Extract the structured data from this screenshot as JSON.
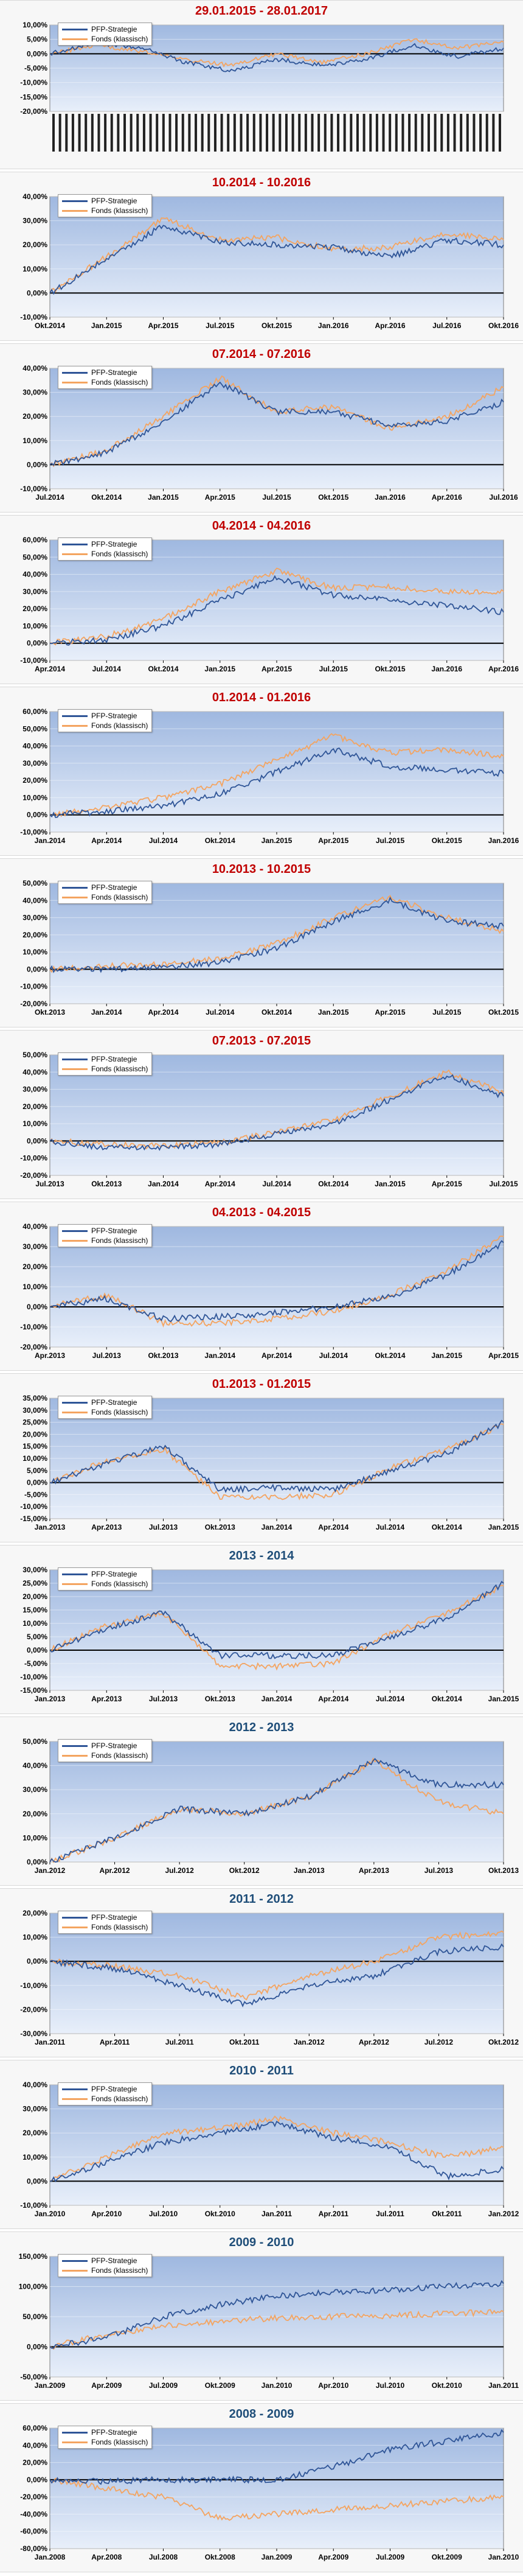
{
  "colors": {
    "strategy": "#2f5597",
    "fund": "#f4a460",
    "title_red": "#c00000",
    "title_blue": "#1f4e79"
  },
  "chart_data": [
    {
      "type": "line",
      "title": "29.01.2015 - 28.01.2017",
      "title_color": "red",
      "y_ticks": [
        "10,00%",
        "5,00%",
        "0,00%",
        "-5,00%",
        "-10,00%",
        "-15,00%",
        "-20,00%"
      ],
      "ylim": [
        -20,
        10
      ],
      "x_labels_unreadable": true,
      "series": [
        {
          "name": "PFP-Strategie",
          "values": [
            0,
            4,
            2,
            -3,
            -6,
            -2,
            -4,
            -2,
            3,
            -1,
            2
          ]
        },
        {
          "name": "Fonds (klassisch)",
          "values": [
            0,
            3,
            1,
            -2,
            -4,
            0,
            -3,
            0,
            5,
            2,
            4
          ]
        }
      ],
      "legend": "top-left"
    },
    {
      "type": "line",
      "title": "10.2014 - 10.2016",
      "title_color": "red",
      "y_ticks": [
        "40,00%",
        "30,00%",
        "20,00%",
        "10,00%",
        "0,00%",
        "-10,00%"
      ],
      "ylim": [
        -10,
        40
      ],
      "x_labels": [
        "Okt.2014",
        "Jan.2015",
        "Apr.2015",
        "Jul.2015",
        "Okt.2015",
        "Jan.2016",
        "Apr.2016",
        "Jul.2016",
        "Okt.2016"
      ],
      "series": [
        {
          "name": "PFP-Strategie",
          "values": [
            0,
            14,
            28,
            21,
            20,
            19,
            15,
            22,
            20
          ]
        },
        {
          "name": "Fonds (klassisch)",
          "values": [
            0,
            15,
            31,
            22,
            23,
            18,
            19,
            25,
            22
          ]
        }
      ],
      "legend": "top-left"
    },
    {
      "type": "line",
      "title": "07.2014 - 07.2016",
      "title_color": "red",
      "y_ticks": [
        "40,00%",
        "30,00%",
        "20,00%",
        "10,00%",
        "0,00%",
        "-10,00%"
      ],
      "ylim": [
        -10,
        40
      ],
      "x_labels": [
        "Jul.2014",
        "Okt.2014",
        "Jan.2015",
        "Apr.2015",
        "Jul.2015",
        "Okt.2015",
        "Jan.2016",
        "Apr.2016",
        "Jul.2016"
      ],
      "series": [
        {
          "name": "PFP-Strategie",
          "values": [
            0,
            5,
            18,
            34,
            22,
            22,
            16,
            18,
            26
          ]
        },
        {
          "name": "Fonds (klassisch)",
          "values": [
            0,
            6,
            20,
            36,
            22,
            24,
            15,
            20,
            32
          ]
        }
      ],
      "legend": "top-left"
    },
    {
      "type": "line",
      "title": "04.2014 - 04.2016",
      "title_color": "red",
      "y_ticks": [
        "60,00%",
        "50,00%",
        "40,00%",
        "30,00%",
        "20,00%",
        "10,00%",
        "0,00%",
        "-10,00%"
      ],
      "ylim": [
        -10,
        60
      ],
      "x_labels": [
        "Apr.2014",
        "Jul.2014",
        "Okt.2014",
        "Jan.2015",
        "Apr.2015",
        "Jul.2015",
        "Okt.2015",
        "Jan.2016",
        "Apr.2016"
      ],
      "series": [
        {
          "name": "PFP-Strategie",
          "values": [
            0,
            2,
            10,
            25,
            38,
            28,
            25,
            22,
            18
          ]
        },
        {
          "name": "Fonds (klassisch)",
          "values": [
            0,
            4,
            14,
            30,
            42,
            32,
            33,
            30,
            30
          ]
        }
      ],
      "legend": "top-left"
    },
    {
      "type": "line",
      "title": "01.2014 - 01.2016",
      "title_color": "red",
      "y_ticks": [
        "60,00%",
        "50,00%",
        "40,00%",
        "30,00%",
        "20,00%",
        "10,00%",
        "0,00%",
        "-10,00%"
      ],
      "ylim": [
        -10,
        60
      ],
      "x_labels": [
        "Jan.2014",
        "Apr.2014",
        "Jul.2014",
        "Okt.2014",
        "Jan.2015",
        "Apr.2015",
        "Jul.2015",
        "Okt.2015",
        "Jan.2016"
      ],
      "series": [
        {
          "name": "PFP-Strategie",
          "values": [
            0,
            2,
            5,
            12,
            25,
            38,
            28,
            26,
            24
          ]
        },
        {
          "name": "Fonds (klassisch)",
          "values": [
            0,
            4,
            10,
            18,
            32,
            46,
            36,
            38,
            34
          ]
        }
      ],
      "legend": "top-left"
    },
    {
      "type": "line",
      "title": "10.2013 - 10.2015",
      "title_color": "red",
      "y_ticks": [
        "50,00%",
        "40,00%",
        "30,00%",
        "20,00%",
        "10,00%",
        "0,00%",
        "-10,00%",
        "-20,00%"
      ],
      "ylim": [
        -20,
        50
      ],
      "x_labels": [
        "Okt.2013",
        "Jan.2014",
        "Apr.2014",
        "Jul.2014",
        "Okt.2014",
        "Jan.2015",
        "Apr.2015",
        "Jul.2015",
        "Okt.2015"
      ],
      "series": [
        {
          "name": "PFP-Strategie",
          "values": [
            0,
            0,
            1,
            4,
            12,
            28,
            40,
            28,
            25
          ]
        },
        {
          "name": "Fonds (klassisch)",
          "values": [
            0,
            2,
            3,
            6,
            15,
            30,
            42,
            30,
            22
          ]
        }
      ],
      "legend": "top-left"
    },
    {
      "type": "line",
      "title": "07.2013 - 07.2015",
      "title_color": "red",
      "y_ticks": [
        "50,00%",
        "40,00%",
        "30,00%",
        "20,00%",
        "10,00%",
        "0,00%",
        "-10,00%",
        "-20,00%"
      ],
      "ylim": [
        -20,
        50
      ],
      "x_labels": [
        "Jul.2013",
        "Okt.2013",
        "Jan.2014",
        "Apr.2014",
        "Jul.2014",
        "Okt.2014",
        "Jan.2015",
        "Apr.2015",
        "Jul.2015"
      ],
      "series": [
        {
          "name": "PFP-Strategie",
          "values": [
            0,
            -4,
            -4,
            -2,
            4,
            10,
            24,
            38,
            26
          ]
        },
        {
          "name": "Fonds (klassisch)",
          "values": [
            0,
            -2,
            -3,
            -1,
            5,
            12,
            26,
            40,
            28
          ]
        }
      ],
      "legend": "top-left"
    },
    {
      "type": "line",
      "title": "04.2013 - 04.2015",
      "title_color": "red",
      "y_ticks": [
        "40,00%",
        "30,00%",
        "20,00%",
        "10,00%",
        "0,00%",
        "-10,00%",
        "-20,00%"
      ],
      "ylim": [
        -20,
        40
      ],
      "x_labels": [
        "Apr.2013",
        "Jul.2013",
        "Okt.2013",
        "Jan.2014",
        "Apr.2014",
        "Jul.2014",
        "Okt.2014",
        "Jan.2015",
        "Apr.2015"
      ],
      "series": [
        {
          "name": "PFP-Strategie",
          "values": [
            0,
            4,
            -6,
            -5,
            -3,
            0,
            5,
            16,
            32
          ]
        },
        {
          "name": "Fonds (klassisch)",
          "values": [
            0,
            6,
            -8,
            -8,
            -6,
            -2,
            6,
            18,
            35
          ]
        }
      ],
      "legend": "top-left"
    },
    {
      "type": "line",
      "title": "01.2013 - 01.2015",
      "title_color": "red",
      "y_ticks": [
        "35,00%",
        "30,00%",
        "25,00%",
        "20,00%",
        "15,00%",
        "10,00%",
        "5,00%",
        "0,00%",
        "-5,00%",
        "-10,00%",
        "-15,00%"
      ],
      "ylim": [
        -15,
        35
      ],
      "x_labels": [
        "Jan.2013",
        "Apr.2013",
        "Jul.2013",
        "Okt.2013",
        "Jan.2014",
        "Apr.2014",
        "Jul.2014",
        "Okt.2014",
        "Jan.2015"
      ],
      "series": [
        {
          "name": "PFP-Strategie",
          "values": [
            0,
            8,
            15,
            -3,
            -2,
            -3,
            5,
            12,
            25
          ]
        },
        {
          "name": "Fonds (klassisch)",
          "values": [
            0,
            9,
            14,
            -6,
            -6,
            -5,
            6,
            14,
            24
          ]
        }
      ],
      "legend": "top-left"
    },
    {
      "type": "line",
      "title": "2013 - 2014",
      "title_color": "blue",
      "y_ticks": [
        "30,00%",
        "25,00%",
        "20,00%",
        "15,00%",
        "10,00%",
        "5,00%",
        "0,00%",
        "-5,00%",
        "-10,00%",
        "-15,00%"
      ],
      "ylim": [
        -15,
        30
      ],
      "x_labels": [
        "Jan.2013",
        "Apr.2013",
        "Jul.2013",
        "Okt.2013",
        "Jan.2014",
        "Apr.2014",
        "Jul.2014",
        "Okt.2014",
        "Jan.2015"
      ],
      "series": [
        {
          "name": "PFP-Strategie",
          "values": [
            0,
            8,
            14,
            -2,
            -2,
            -2,
            5,
            12,
            25
          ]
        },
        {
          "name": "Fonds (klassisch)",
          "values": [
            0,
            9,
            14,
            -6,
            -6,
            -5,
            6,
            14,
            24
          ]
        }
      ],
      "legend": "top-left"
    },
    {
      "type": "line",
      "title": "2012 - 2013",
      "title_color": "blue",
      "y_ticks": [
        "50,00%",
        "40,00%",
        "30,00%",
        "20,00%",
        "10,00%",
        "0,00%"
      ],
      "ylim": [
        0,
        50
      ],
      "x_labels": [
        "Jan.2012",
        "Apr.2012",
        "Jul.2012",
        "Okt.2012",
        "Jan.2013",
        "Apr.2013",
        "Jul.2013",
        "Okt.2013"
      ],
      "series": [
        {
          "name": "PFP-Strategie",
          "values": [
            0,
            10,
            22,
            20,
            27,
            42,
            32,
            32
          ]
        },
        {
          "name": "Fonds (klassisch)",
          "values": [
            0,
            10,
            22,
            20,
            27,
            42,
            25,
            20
          ]
        }
      ],
      "legend": "top-left"
    },
    {
      "type": "line",
      "title": "2011 - 2012",
      "title_color": "blue",
      "y_ticks": [
        "20,00%",
        "10,00%",
        "0,00%",
        "-10,00%",
        "-20,00%",
        "-30,00%"
      ],
      "ylim": [
        -30,
        20
      ],
      "x_labels": [
        "Jan.2011",
        "Apr.2011",
        "Jul.2011",
        "Okt.2011",
        "Jan.2012",
        "Apr.2012",
        "Jul.2012",
        "Okt.2012"
      ],
      "series": [
        {
          "name": "PFP-Strategie",
          "values": [
            0,
            -3,
            -10,
            -18,
            -10,
            -6,
            4,
            6
          ]
        },
        {
          "name": "Fonds (klassisch)",
          "values": [
            0,
            -2,
            -6,
            -15,
            -6,
            0,
            10,
            12
          ]
        }
      ],
      "legend": "top-left"
    },
    {
      "type": "line",
      "title": "2010 - 2011",
      "title_color": "blue",
      "y_ticks": [
        "40,00%",
        "30,00%",
        "20,00%",
        "10,00%",
        "0,00%",
        "-10,00%"
      ],
      "ylim": [
        -10,
        40
      ],
      "x_labels": [
        "Jan.2010",
        "Apr.2010",
        "Jul.2010",
        "Okt.2010",
        "Jan.2011",
        "Apr.2011",
        "Jul.2011",
        "Okt.2011",
        "Jan.2012"
      ],
      "series": [
        {
          "name": "PFP-Strategie",
          "values": [
            0,
            8,
            16,
            20,
            24,
            18,
            14,
            2,
            5
          ]
        },
        {
          "name": "Fonds (klassisch)",
          "values": [
            0,
            10,
            20,
            22,
            26,
            20,
            16,
            10,
            14
          ]
        }
      ],
      "legend": "top-left"
    },
    {
      "type": "line",
      "title": "2009 - 2010",
      "title_color": "blue",
      "y_ticks": [
        "150,00%",
        "100,00%",
        "50,00%",
        "0,00%",
        "-50,00%"
      ],
      "ylim": [
        -50,
        150
      ],
      "x_labels": [
        "Jan.2009",
        "Apr.2009",
        "Jul.2009",
        "Okt.2009",
        "Jan.2010",
        "Apr.2010",
        "Jul.2010",
        "Okt.2010",
        "Jan.2011"
      ],
      "series": [
        {
          "name": "PFP-Strategie",
          "values": [
            0,
            15,
            50,
            70,
            85,
            90,
            95,
            100,
            105
          ]
        },
        {
          "name": "Fonds (klassisch)",
          "values": [
            0,
            20,
            35,
            42,
            48,
            50,
            52,
            55,
            58
          ]
        }
      ],
      "legend": "top-left"
    },
    {
      "type": "line",
      "title": "2008 - 2009",
      "title_color": "blue",
      "y_ticks": [
        "60,00%",
        "40,00%",
        "20,00%",
        "0,00%",
        "-20,00%",
        "-40,00%",
        "-60,00%",
        "-80,00%"
      ],
      "ylim": [
        -80,
        60
      ],
      "x_labels": [
        "Jan.2008",
        "Apr.2008",
        "Jul.2008",
        "Okt.2008",
        "Jan.2009",
        "Apr.2009",
        "Jul.2009",
        "Okt.2009",
        "Jan.2010"
      ],
      "series": [
        {
          "name": "PFP-Strategie",
          "values": [
            0,
            -2,
            0,
            0,
            0,
            15,
            35,
            45,
            55
          ]
        },
        {
          "name": "Fonds (klassisch)",
          "values": [
            0,
            -10,
            -20,
            -45,
            -40,
            -35,
            -30,
            -25,
            -20
          ]
        }
      ],
      "legend": "top-left"
    }
  ]
}
